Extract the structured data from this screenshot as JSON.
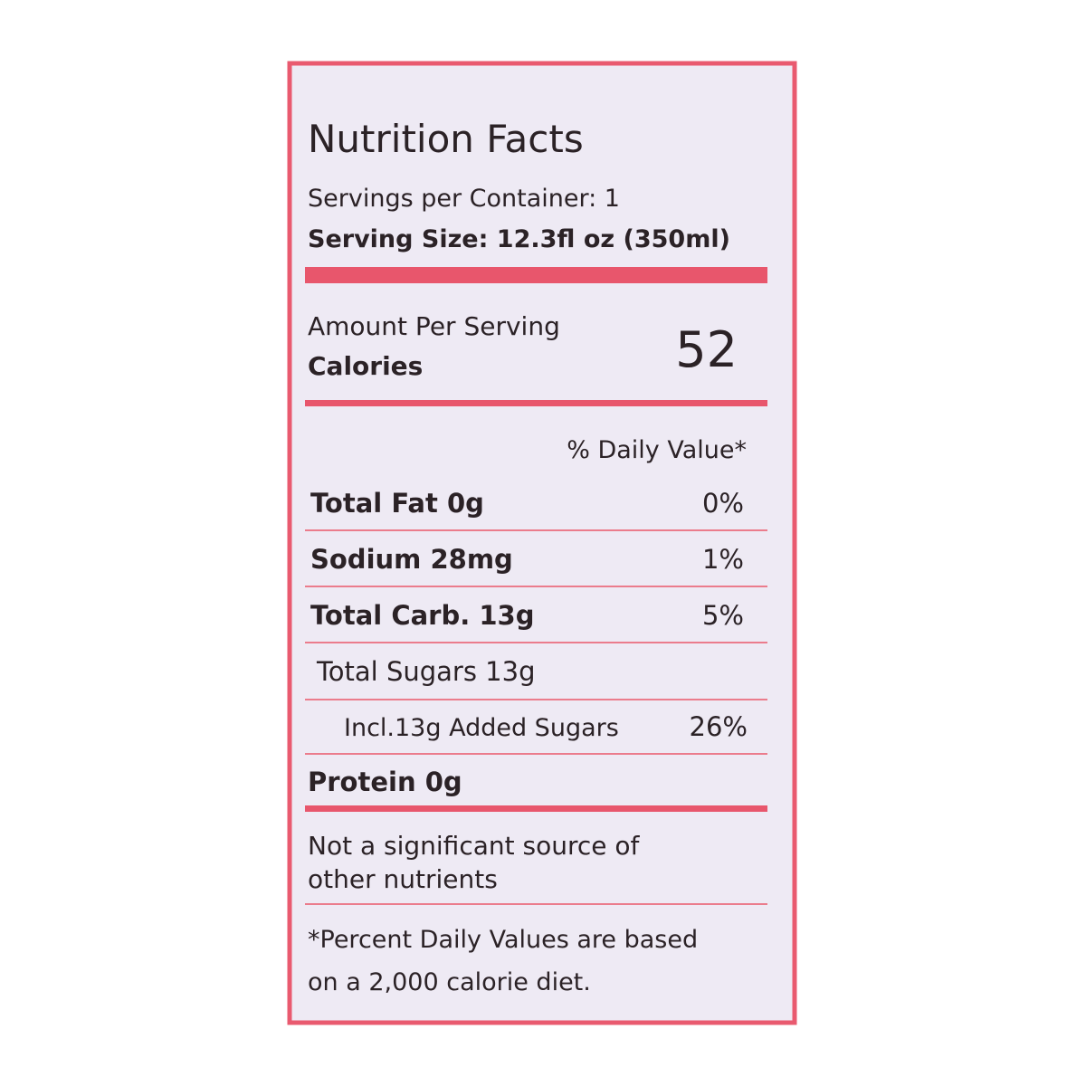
{
  "title": "Nutrition Facts",
  "servings": "Servings per Container: 1",
  "serving_size": "Serving Size: 12.3fl oz (350ml)",
  "amount_per_serving": "Amount Per Serving",
  "calories_label": "Calories",
  "calories_value": "52",
  "daily_value_header": "% Daily Value*",
  "rows": [
    {
      "name": "Total Fat 0g",
      "dv": "0%"
    },
    {
      "name": "Sodium 28mg",
      "dv": "1%"
    },
    {
      "name": "Total Carb. 13g",
      "dv": "5%"
    },
    {
      "name": "Total Sugars 13g"
    },
    {
      "name": "Incl.13g Added Sugars",
      "dv": "26%"
    },
    {
      "name": "Protein 0g"
    }
  ],
  "note": [
    "Not a significant source of",
    "other nutrients"
  ],
  "footnote": [
    "*Percent Daily Values are based",
    "on a 2,000 calorie diet."
  ]
}
